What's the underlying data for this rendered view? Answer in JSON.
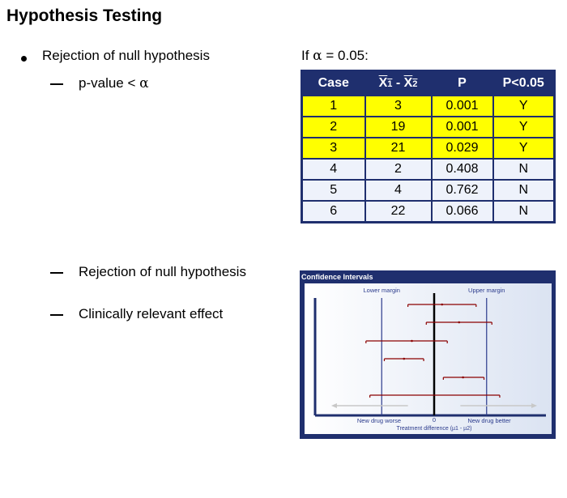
{
  "slide": {
    "title": "Hypothesis Testing",
    "bullet1": "Rejection of null hypothesis",
    "sub1_prefix": "p-value < ",
    "sub1_symbol": "α",
    "sub2": "Rejection of null hypothesis",
    "sub3": "Clinically relevant effect"
  },
  "table": {
    "caption_prefix": "If ",
    "caption_symbol": "α",
    "caption_suffix": " = 0.05:",
    "headers": {
      "case": "Case",
      "x1": "X",
      "x1_sub": "1",
      "dash": " - ",
      "x2": "X",
      "x2_sub": "2",
      "p": "P",
      "sig": "P<0.05"
    },
    "rows": [
      {
        "case": "1",
        "diff": "3",
        "p": "0.001",
        "sig": "Y"
      },
      {
        "case": "2",
        "diff": "19",
        "p": "0.001",
        "sig": "Y"
      },
      {
        "case": "3",
        "diff": "21",
        "p": "0.029",
        "sig": "Y"
      },
      {
        "case": "4",
        "diff": "2",
        "p": "0.408",
        "sig": "N"
      },
      {
        "case": "5",
        "diff": "4",
        "p": "0.762",
        "sig": "N"
      },
      {
        "case": "6",
        "diff": "22",
        "p": "0.066",
        "sig": "N"
      }
    ],
    "highlight_color": "#ffff00",
    "header_color": "#1f2f6e"
  },
  "chart_data": {
    "type": "scatter",
    "title": "Confidence Intervals",
    "xlabel": "Treatment difference (µ1 - µ2)",
    "zero_label": "0",
    "lower_margin_label": "Lower margin",
    "upper_margin_label": "Upper margin",
    "left_arrow_label": "New drug worse",
    "right_arrow_label": "New drug better",
    "lower_margin": -2.0,
    "upper_margin": 2.0,
    "xlim": [
      -4.2,
      4.2
    ],
    "intervals": [
      {
        "low": -1.0,
        "mid": 0.3,
        "high": 1.6
      },
      {
        "low": -0.3,
        "mid": 0.95,
        "high": 2.2
      },
      {
        "low": -2.6,
        "mid": -0.85,
        "high": 0.5
      },
      {
        "low": -1.9,
        "mid": -1.15,
        "high": -0.4
      },
      {
        "low": 0.35,
        "mid": 1.1,
        "high": 1.9
      },
      {
        "low": -2.45,
        "mid": null,
        "high": 2.5
      }
    ],
    "colors": {
      "interval": "#8b0000",
      "margin": "#2a3a8c",
      "axis": "#1f2f6e",
      "arrow": "#c8c8c8"
    }
  }
}
